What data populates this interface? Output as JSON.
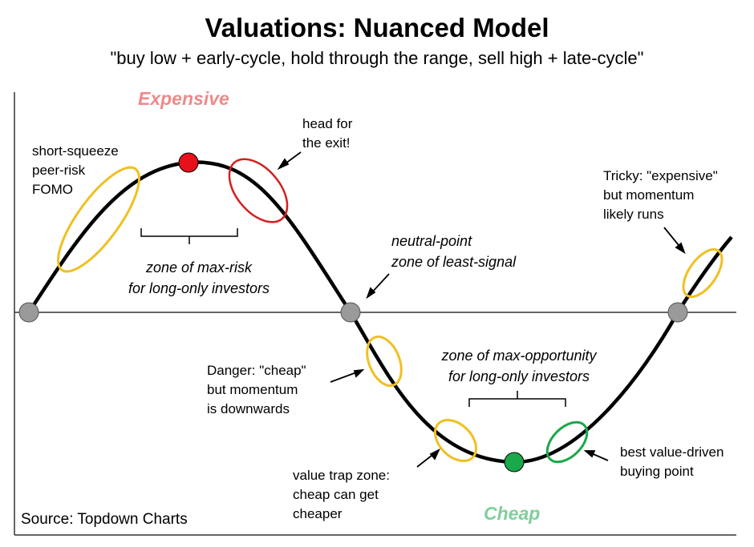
{
  "title": "Valuations: Nuanced Model",
  "subtitle": "\"buy low + early-cycle, hold through the range, sell high + late-cycle\"",
  "labels": {
    "expensive": "Expensive",
    "cheap": "Cheap",
    "short_squeeze": "short-squeeze\npeer-risk\nFOMO",
    "head_for_exit": "head for\nthe exit!",
    "tricky": "Tricky: \"expensive\"\nbut momentum\nlikely runs",
    "max_risk_zone": "zone of max-risk\nfor long-only investors",
    "neutral_point": "neutral-point\nzone of least-signal",
    "danger_cheap": "Danger: \"cheap\"\nbut momentum\nis downwards",
    "max_opportunity_zone": "zone of max-opportunity\nfor long-only investors",
    "best_value": "best value-driven\nbuying point",
    "value_trap": "value trap zone:\ncheap can get\ncheaper",
    "source": "Source: Topdown Charts"
  },
  "colors": {
    "curve": "#000000",
    "axis": "#333333",
    "peak_dot": "#e8101a",
    "trough_dot": "#1aa84a",
    "neutral_dot": "#9a9a9a",
    "yellow_ellipse": "#f0c020",
    "red_ellipse": "#d42020",
    "green_ellipse": "#1aa84a",
    "expensive_text": "#ee8a8a",
    "cheap_text": "#7fcf9a"
  }
}
